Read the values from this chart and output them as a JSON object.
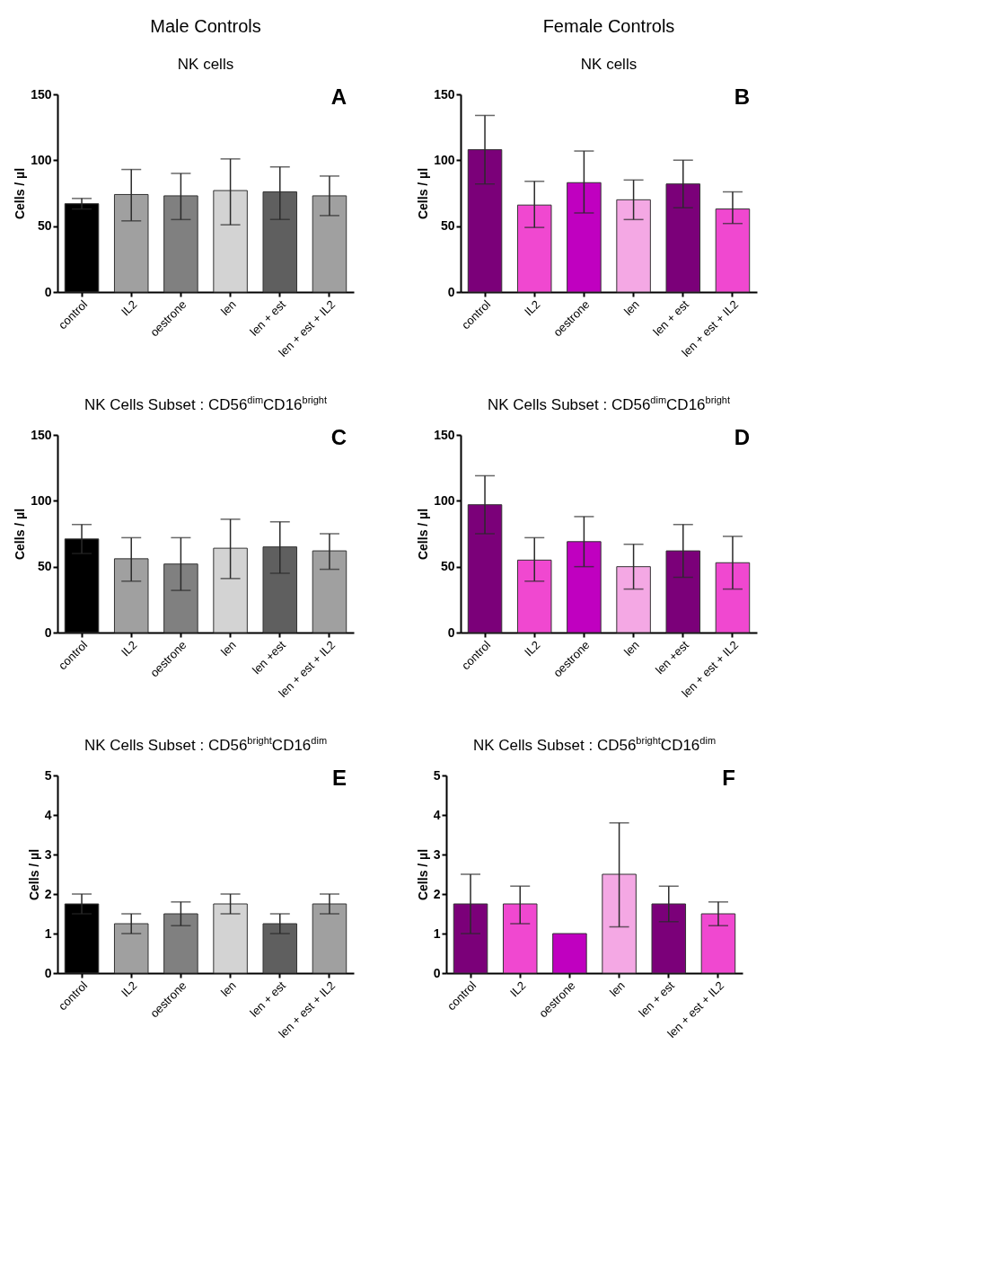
{
  "chart_data": [
    {
      "type": "bar",
      "title": "NK cells",
      "ylabel": "Cells / µl",
      "annotations": [
        "A",
        "Male Controls"
      ],
      "categories": [
        "control",
        "IL2",
        "oestrone",
        "len",
        "len + est",
        "len + est + IL2"
      ],
      "values": [
        67,
        74,
        73,
        77,
        76,
        73
      ],
      "errors": [
        [
          63,
          71
        ],
        [
          54,
          93
        ],
        [
          55,
          90
        ],
        [
          51,
          101
        ],
        [
          55,
          95
        ],
        [
          58,
          88
        ]
      ],
      "colors": [
        "#000000",
        "#a0a0a0",
        "#808080",
        "#d3d3d3",
        "#5f5f5f",
        "#a0a0a0"
      ],
      "ylim": [
        0,
        150
      ],
      "yticks": [
        0,
        50,
        100,
        150
      ],
      "grid": false
    },
    {
      "type": "bar",
      "title": "NK cells",
      "ylabel": "Cells / µl",
      "annotations": [
        "B",
        "Female Controls"
      ],
      "categories": [
        "control",
        "IL2",
        "oestrone",
        "len",
        "len + est",
        "len + est + IL2"
      ],
      "values": [
        108,
        66,
        83,
        70,
        82,
        63
      ],
      "errors": [
        [
          82,
          134
        ],
        [
          49,
          84
        ],
        [
          60,
          107
        ],
        [
          55,
          85
        ],
        [
          64,
          100
        ],
        [
          52,
          76
        ]
      ],
      "colors": [
        "#7b0079",
        "#f048d0",
        "#c000c0",
        "#f4a8e4",
        "#7b0079",
        "#f048d0"
      ],
      "ylim": [
        0,
        150
      ],
      "yticks": [
        0,
        50,
        100,
        150
      ],
      "grid": false
    },
    {
      "type": "bar",
      "title": "NK Cells Subset : CD56$^{dim}$CD16$^{bright}$",
      "ylabel": "Cells / µl",
      "annotations": [
        "C"
      ],
      "categories": [
        "control",
        "IL2",
        "oestrone",
        "len",
        "len +est",
        "len + est + IL2"
      ],
      "values": [
        71,
        56,
        52,
        64,
        65,
        62
      ],
      "errors": [
        [
          60,
          82
        ],
        [
          39,
          72
        ],
        [
          32,
          72
        ],
        [
          41,
          86
        ],
        [
          45,
          84
        ],
        [
          48,
          75
        ]
      ],
      "colors": [
        "#000000",
        "#a0a0a0",
        "#808080",
        "#d3d3d3",
        "#5f5f5f",
        "#a0a0a0"
      ],
      "ylim": [
        0,
        150
      ],
      "yticks": [
        0,
        50,
        100,
        150
      ],
      "grid": false
    },
    {
      "type": "bar",
      "title": "NK Cells Subset : CD56$^{dim}$CD16$^{bright}$",
      "ylabel": "Cells / µl",
      "annotations": [
        "D"
      ],
      "categories": [
        "control",
        "IL2",
        "oestrone",
        "len",
        "len +est",
        "len + est + IL2"
      ],
      "values": [
        97,
        55,
        69,
        50,
        62,
        53
      ],
      "errors": [
        [
          75,
          119
        ],
        [
          39,
          72
        ],
        [
          50,
          88
        ],
        [
          33,
          67
        ],
        [
          42,
          82
        ],
        [
          33,
          73
        ]
      ],
      "colors": [
        "#7b0079",
        "#f048d0",
        "#c000c0",
        "#f4a8e4",
        "#7b0079",
        "#f048d0"
      ],
      "ylim": [
        0,
        150
      ],
      "yticks": [
        0,
        50,
        100,
        150
      ],
      "grid": false
    },
    {
      "type": "bar",
      "title": "NK Cells Subset : CD56$^{bright}$CD16$^{dim}$",
      "ylabel": "Cells / µl",
      "annotations": [
        "E"
      ],
      "categories": [
        "control",
        "IL2",
        "oestrone",
        "len",
        "len + est",
        "len + est + IL2"
      ],
      "values": [
        1.75,
        1.25,
        1.5,
        1.75,
        1.25,
        1.75
      ],
      "errors": [
        [
          1.5,
          2
        ],
        [
          1,
          1.5
        ],
        [
          1.2,
          1.8
        ],
        [
          1.5,
          2
        ],
        [
          1,
          1.5
        ],
        [
          1.5,
          2
        ]
      ],
      "colors": [
        "#000000",
        "#a0a0a0",
        "#808080",
        "#d3d3d3",
        "#5f5f5f",
        "#a0a0a0"
      ],
      "ylim": [
        0,
        5
      ],
      "yticks": [
        0,
        1,
        2,
        3,
        4,
        5
      ],
      "grid": false
    },
    {
      "type": "bar",
      "title": "NK Cells Subset : CD56$^{bright}$CD16$^{dim}$",
      "ylabel": "Cells / µl",
      "annotations": [
        "F"
      ],
      "categories": [
        "control",
        "IL2",
        "oestrone",
        "len",
        "len + est",
        "len + est + IL2"
      ],
      "values": [
        1.75,
        1.75,
        1,
        2.5,
        1.75,
        1.5
      ],
      "errors": [
        [
          1,
          2.5
        ],
        [
          1.25,
          2.2
        ],
        null,
        [
          1.17,
          3.8
        ],
        [
          1.3,
          2.2
        ],
        [
          1.2,
          1.8
        ]
      ],
      "colors": [
        "#7b0079",
        "#f048d0",
        "#c000c0",
        "#f4a8e4",
        "#7b0079",
        "#f048d0"
      ],
      "ylim": [
        0,
        5
      ],
      "yticks": [
        0,
        1,
        2,
        3,
        4,
        5
      ],
      "grid": false
    }
  ]
}
